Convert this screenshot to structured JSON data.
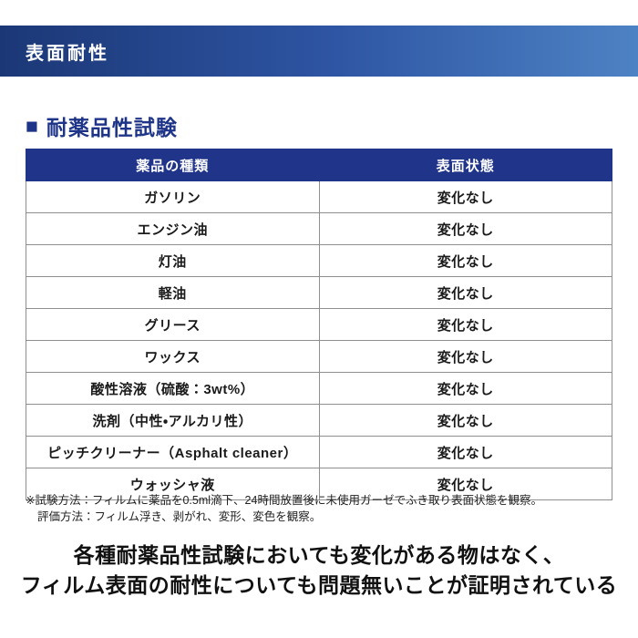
{
  "header": {
    "title": "表面耐性"
  },
  "section": {
    "bullet": "■",
    "title": "耐薬品性試験"
  },
  "table": {
    "columns": [
      "薬品の種類",
      "表面状態"
    ],
    "rows": [
      [
        "ガソリン",
        "変化なし"
      ],
      [
        "エンジン油",
        "変化なし"
      ],
      [
        "灯油",
        "変化なし"
      ],
      [
        "軽油",
        "変化なし"
      ],
      [
        "グリース",
        "変化なし"
      ],
      [
        "ワックス",
        "変化なし"
      ],
      [
        "酸性溶液（硫酸：3wt%）",
        "変化なし"
      ],
      [
        "洗剤（中性・アルカリ性）",
        "変化なし"
      ],
      [
        "ピッチクリーナー（Asphalt cleaner）",
        "変化なし"
      ],
      [
        "ウォッシャ液",
        "変化なし"
      ]
    ]
  },
  "notes": {
    "line1": "※試験方法：フィルムに薬品を0.5ml滴下、24時間放置後に未使用ガーゼでふき取り表面状態を観察。",
    "line2": "評価方法：フィルム浮き、剥がれ、変形、変色を観察。"
  },
  "conclusion": {
    "line1": "各種耐薬品性試験においても変化がある物はなく、",
    "line2": "フィルム表面の耐性についても問題無いことが証明されている"
  },
  "colors": {
    "banner_gradient_left": "#1b3776",
    "banner_gradient_mid": "#2e55a3",
    "banner_gradient_right": "#4d82c4",
    "table_header_bg": "#20348a",
    "section_title_color": "#1e3488",
    "table_border": "#8f8f8f",
    "body_text": "#1a1a1a"
  }
}
